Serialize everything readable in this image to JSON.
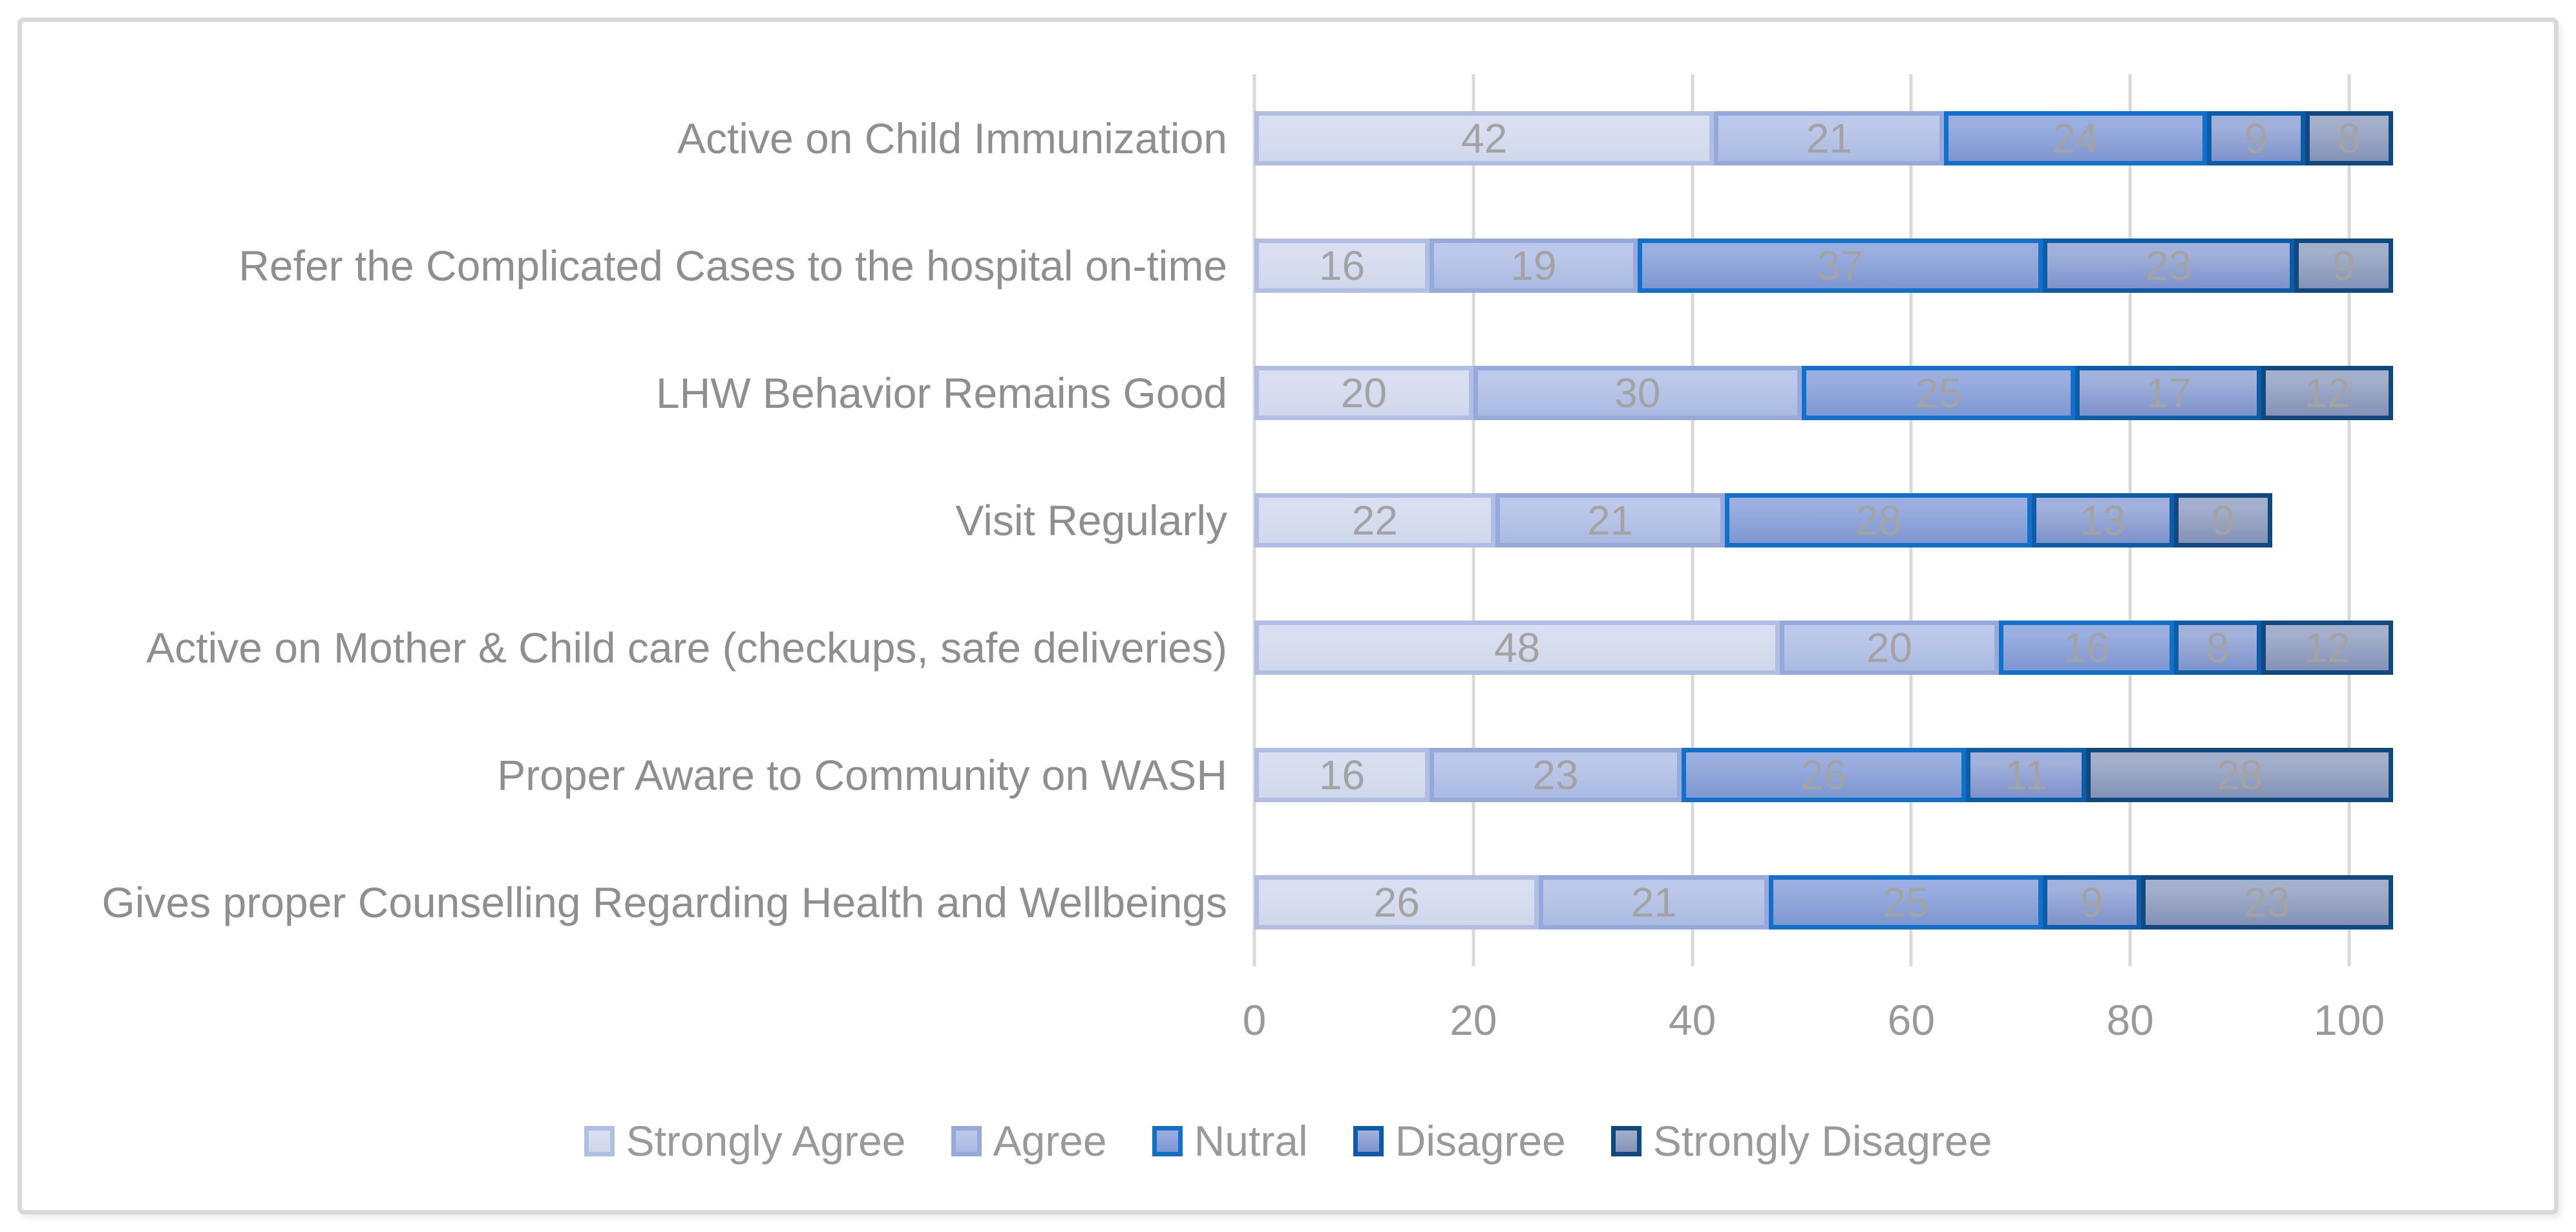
{
  "chart_data": {
    "type": "bar",
    "orientation": "horizontal",
    "stacked": true,
    "categories": [
      "Active on Child Immunization",
      "Refer the Complicated Cases to the hospital on-time",
      "LHW Behavior Remains Good",
      "Visit Regularly",
      "Active on Mother & Child care (checkups, safe deliveries)",
      "Proper Aware to Community on WASH",
      "Gives proper Counselling Regarding Health and Wellbeings"
    ],
    "series": [
      {
        "name": "Strongly Agree",
        "values": [
          42,
          16,
          20,
          22,
          48,
          16,
          26
        ],
        "fill_top": "#D9DFF0",
        "fill_bottom": "#CFD8EB",
        "border": "#AFBEE2"
      },
      {
        "name": "Agree",
        "values": [
          21,
          19,
          30,
          21,
          20,
          23,
          21
        ],
        "fill_top": "#BDC9EA",
        "fill_bottom": "#AABAE1",
        "border": "#97A9DA"
      },
      {
        "name": "Nutral",
        "values": [
          24,
          37,
          25,
          28,
          16,
          26,
          25
        ],
        "fill_top": "#9AAEDF",
        "fill_bottom": "#7E97D1",
        "border": "#1270CA"
      },
      {
        "name": "Disagree",
        "values": [
          9,
          23,
          17,
          13,
          8,
          11,
          9
        ],
        "fill_top": "#A2B1DC",
        "fill_bottom": "#7E93CB",
        "border": "#0D5CA8"
      },
      {
        "name": "Strongly Disagree",
        "values": [
          8,
          9,
          12,
          9,
          12,
          28,
          23
        ],
        "fill_top": "#A3AFCB",
        "fill_bottom": "#8392B7",
        "border": "#10497F"
      }
    ],
    "x_axis": {
      "ticks": [
        0,
        20,
        40,
        60,
        80,
        100
      ],
      "max": 100
    },
    "grid": true,
    "legend_position": "bottom",
    "colors": {
      "background": "#FFFFFF",
      "frame": "#D9D9D9",
      "gridline": "#D9D9D9",
      "category_label": "#8F8F8F",
      "axis_label": "#9A9A9A",
      "data_label": "#A3A3A3",
      "legend_label": "#9A9A9A"
    }
  }
}
